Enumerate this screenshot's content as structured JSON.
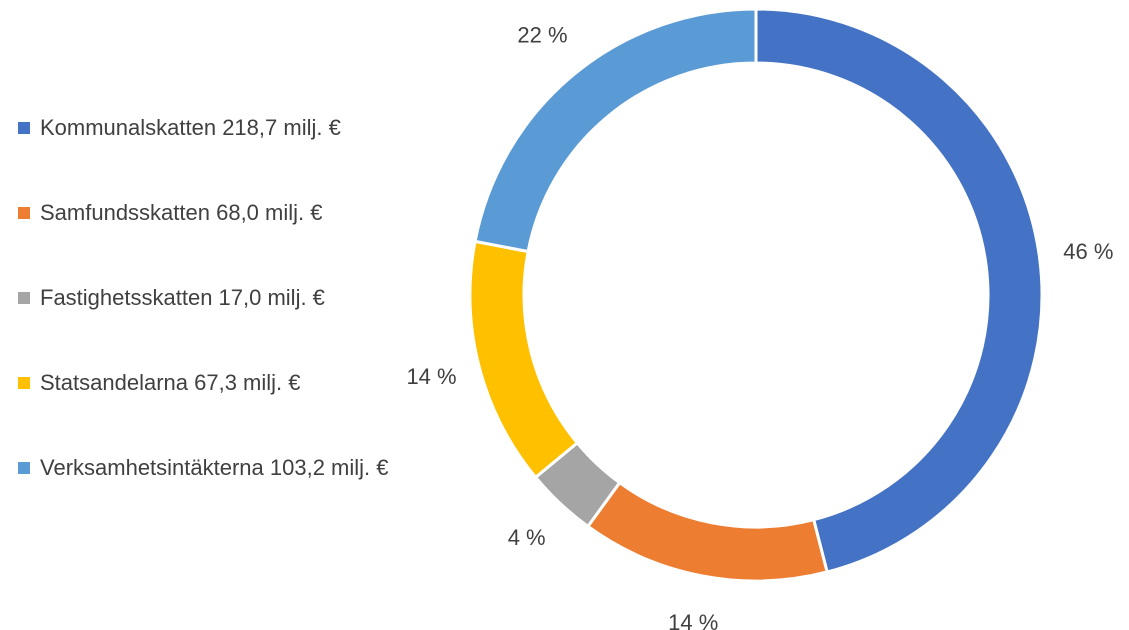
{
  "chart_data": {
    "type": "donut",
    "categories": [
      "Kommunalskatten 218,7 milj. €",
      "Samfundsskatten 68,0 milj. €",
      "Fastighetsskatten 17,0 milj. €",
      "Statsandelarna 67,3 milj. €",
      "Verksamhetsintäkterna 103,2 milj. €"
    ],
    "values": [
      46,
      14,
      4,
      14,
      22
    ],
    "value_labels": [
      "46 %",
      "14 %",
      "4 %",
      "14 %",
      "22 %"
    ],
    "colors": [
      "#4472c4",
      "#ed7d31",
      "#a5a5a5",
      "#ffc000",
      "#5b9bd5"
    ],
    "legend": "left"
  }
}
